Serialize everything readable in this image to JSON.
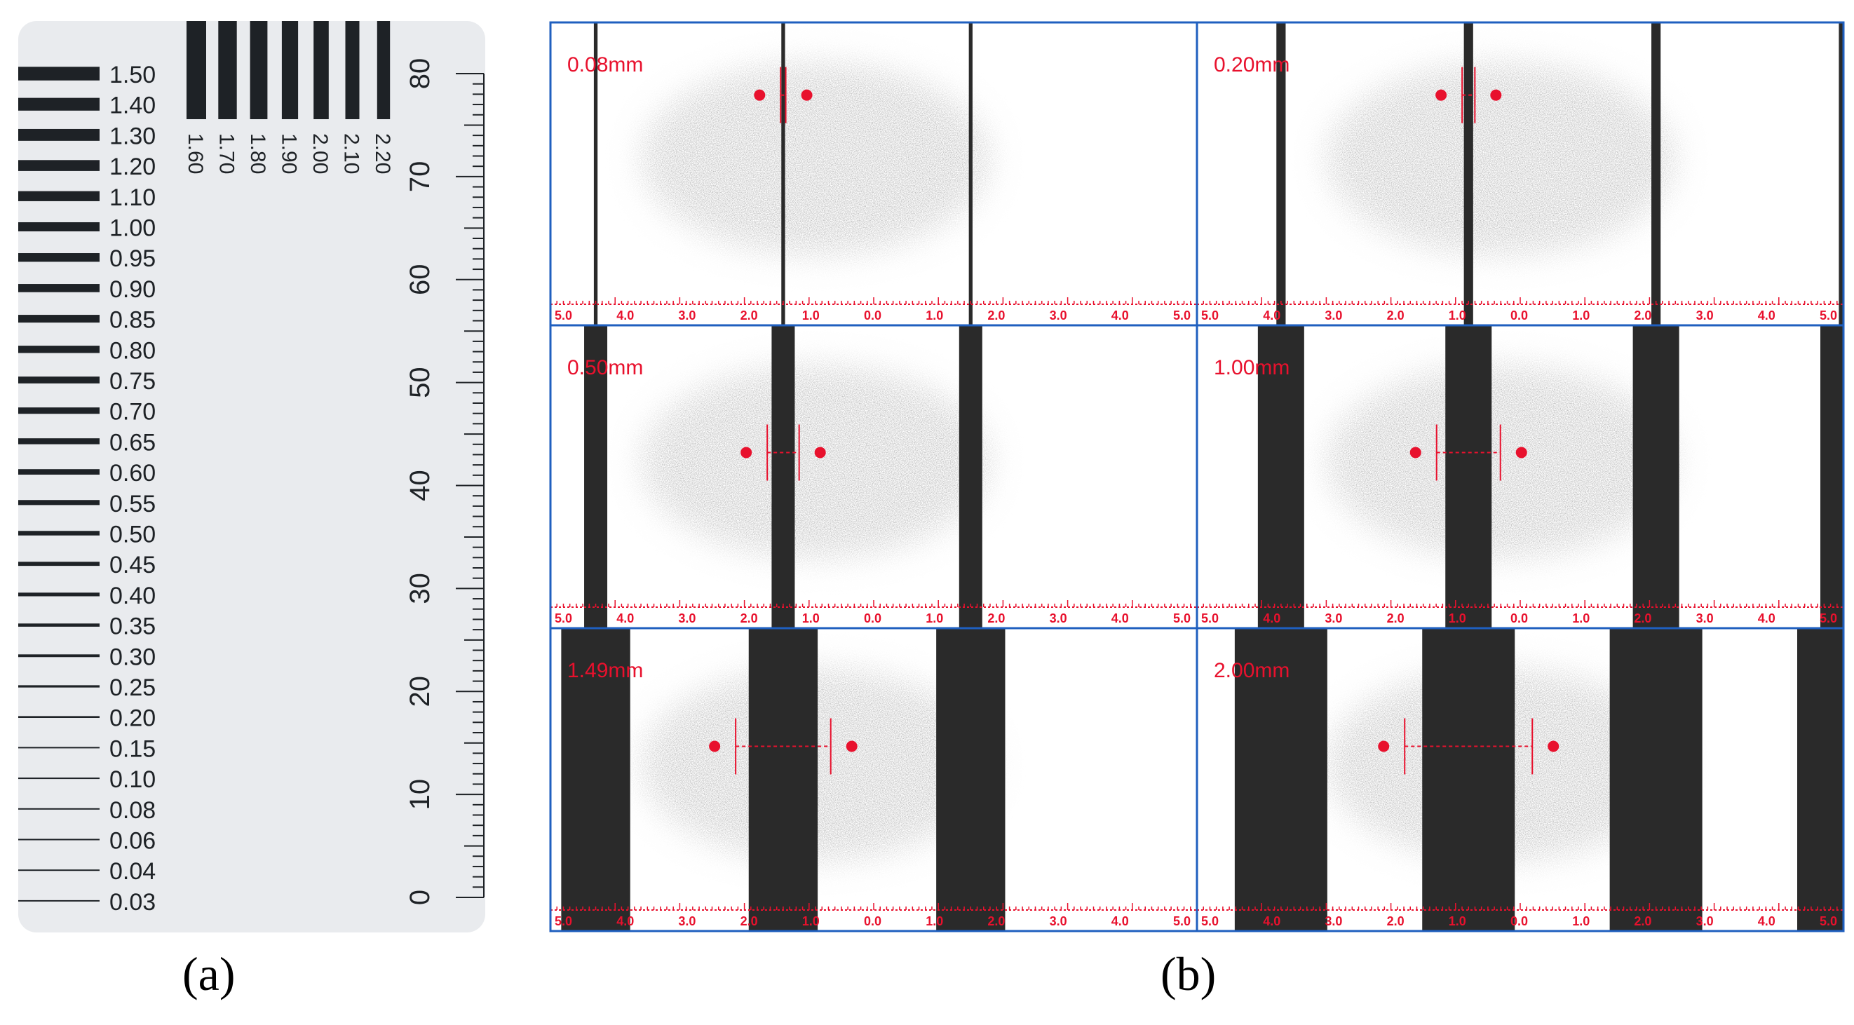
{
  "panel_a": {
    "label": "(a)",
    "line_pairs": [
      "1.50",
      "1.40",
      "1.30",
      "1.20",
      "1.10",
      "1.00",
      "0.95",
      "0.90",
      "0.85",
      "0.80",
      "0.75",
      "0.70",
      "0.65",
      "0.60",
      "0.55",
      "0.50",
      "0.45",
      "0.40",
      "0.35",
      "0.30",
      "0.25",
      "0.20",
      "0.15",
      "0.10",
      "0.08",
      "0.06",
      "0.04",
      "0.03"
    ],
    "vertical_pairs": [
      "1.60",
      "1.70",
      "1.80",
      "1.90",
      "2.00",
      "2.10",
      "2.20"
    ],
    "ruler_labels": [
      "80",
      "70",
      "60",
      "50",
      "40",
      "30",
      "20",
      "10",
      "0"
    ]
  },
  "panel_b": {
    "label": "(b)",
    "scale_ticks": [
      "5.0",
      "4.0",
      "3.0",
      "2.0",
      "1.0",
      "0.0",
      "1.0",
      "2.0",
      "3.0",
      "4.0",
      "5.0"
    ],
    "frames": [
      {
        "label": "0.08mm",
        "gap": 0.08
      },
      {
        "label": "0.20mm",
        "gap": 0.2
      },
      {
        "label": "0.50mm",
        "gap": 0.5
      },
      {
        "label": "1.00mm",
        "gap": 1.0
      },
      {
        "label": "1.49mm",
        "gap": 1.49
      },
      {
        "label": "2.00mm",
        "gap": 2.0
      }
    ]
  },
  "colors": {
    "accent_red": "#e8112d",
    "frame_border": "#1f5fbf",
    "card_bg": "#e9ebee",
    "ink": "#1e2226"
  }
}
